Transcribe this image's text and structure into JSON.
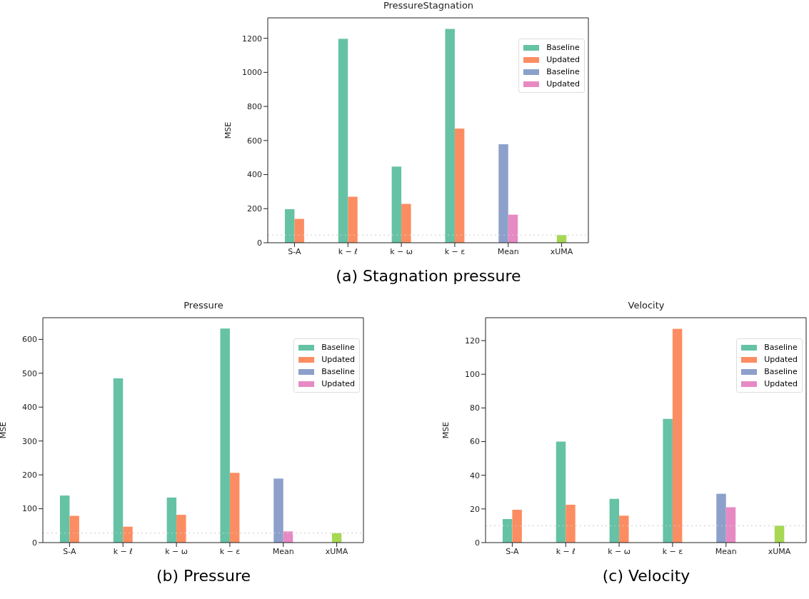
{
  "chart_data": [
    {
      "type": "bar",
      "title": "PressureStagnation",
      "ylabel": "MSE",
      "categories": [
        "S-A",
        "k − ℓ",
        "k − ω",
        "k − ε",
        "Mean",
        "xUMA"
      ],
      "series": [
        {
          "name": "Baseline",
          "color": "#66c2a5",
          "values": [
            197,
            1197,
            447,
            1255,
            null,
            null
          ]
        },
        {
          "name": "Updated",
          "color": "#fc8d62",
          "values": [
            140,
            270,
            228,
            670,
            null,
            null
          ]
        },
        {
          "name": "Baseline",
          "color": "#8da0cb",
          "values": [
            null,
            null,
            null,
            null,
            578,
            null
          ]
        },
        {
          "name": "Updated",
          "color": "#e78ac3",
          "values": [
            null,
            null,
            null,
            null,
            165,
            null
          ]
        },
        {
          "color": "#a6d854",
          "values": [
            null,
            null,
            null,
            null,
            null,
            45
          ]
        }
      ],
      "ylim": [
        0,
        1320
      ],
      "yticks": [
        0,
        200,
        400,
        600,
        800,
        1000,
        1200
      ],
      "grid": false,
      "legend": "top right",
      "ref_lines": [
        {
          "axis": "y",
          "value": 45,
          "color": "#cccccc",
          "line_style": "dotted"
        }
      ],
      "annotations": [
        "(a) Stagnation pressure"
      ]
    },
    {
      "type": "bar",
      "title": "Pressure",
      "ylabel": "MSE",
      "categories": [
        "S-A",
        "k − ℓ",
        "k − ω",
        "k − ε",
        "Mean",
        "xUMA"
      ],
      "series": [
        {
          "name": "Baseline",
          "color": "#66c2a5",
          "values": [
            139,
            485,
            133,
            632,
            null,
            null
          ]
        },
        {
          "name": "Updated",
          "color": "#fc8d62",
          "values": [
            79,
            47,
            82,
            206,
            null,
            null
          ]
        },
        {
          "name": "Baseline",
          "color": "#8da0cb",
          "values": [
            null,
            null,
            null,
            null,
            189,
            null
          ]
        },
        {
          "name": "Updated",
          "color": "#e78ac3",
          "values": [
            null,
            null,
            null,
            null,
            33,
            null
          ]
        },
        {
          "color": "#a6d854",
          "values": [
            null,
            null,
            null,
            null,
            null,
            28
          ]
        }
      ],
      "ylim": [
        0,
        664
      ],
      "yticks": [
        0,
        100,
        200,
        300,
        400,
        500,
        600
      ],
      "grid": false,
      "legend": "top right",
      "ref_lines": [
        {
          "axis": "y",
          "value": 28,
          "color": "#cccccc",
          "line_style": "dotted"
        }
      ],
      "annotations": [
        "(b) Pressure"
      ]
    },
    {
      "type": "bar",
      "title": "Velocity",
      "ylabel": "MSE",
      "categories": [
        "S-A",
        "k − ℓ",
        "k − ω",
        "k − ε",
        "Mean",
        "xUMA"
      ],
      "series": [
        {
          "name": "Baseline",
          "color": "#66c2a5",
          "values": [
            14,
            60,
            26,
            73.5,
            null,
            null
          ]
        },
        {
          "name": "Updated",
          "color": "#fc8d62",
          "values": [
            19.5,
            22.5,
            16,
            127,
            null,
            null
          ]
        },
        {
          "name": "Baseline",
          "color": "#8da0cb",
          "values": [
            null,
            null,
            null,
            null,
            29,
            null
          ]
        },
        {
          "name": "Updated",
          "color": "#e78ac3",
          "values": [
            null,
            null,
            null,
            null,
            21,
            null
          ]
        },
        {
          "color": "#a6d854",
          "values": [
            null,
            null,
            null,
            null,
            null,
            10
          ]
        }
      ],
      "ylim": [
        0,
        133.6
      ],
      "yticks": [
        0,
        20,
        40,
        60,
        80,
        100,
        120
      ],
      "grid": false,
      "legend": "top right",
      "ref_lines": [
        {
          "axis": "y",
          "value": 10,
          "color": "#cccccc",
          "line_style": "dotted"
        }
      ],
      "annotations": [
        "(c) Velocity"
      ]
    }
  ]
}
